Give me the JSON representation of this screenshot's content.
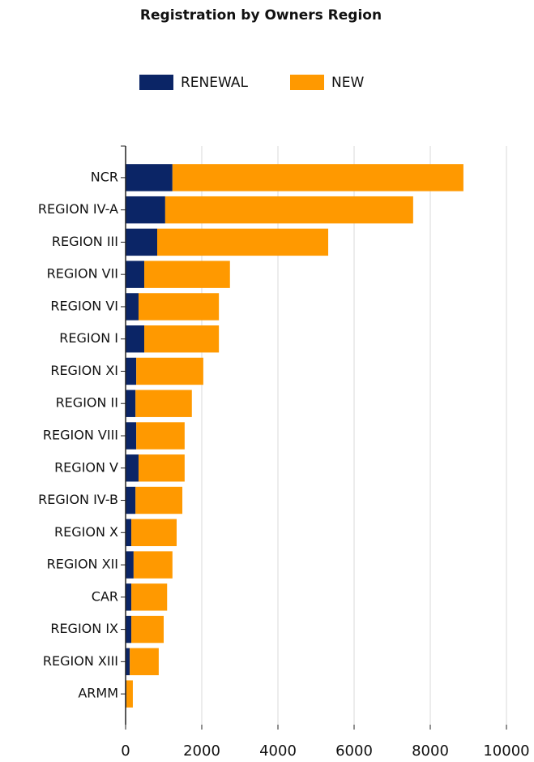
{
  "chart_data": {
    "type": "bar",
    "orientation": "horizontal",
    "stacked": true,
    "title": "Registration by Owners Region",
    "categories": [
      "NCR",
      "REGION IV-A",
      "REGION III",
      "REGION VII",
      "REGION VI",
      "REGION I",
      "REGION XI",
      "REGION II",
      "REGION VIII",
      "REGION V",
      "REGION IV-B",
      "REGION X",
      "REGION XII",
      "CAR",
      "REGION IX",
      "REGION XIII",
      "ARMM"
    ],
    "series": [
      {
        "name": "RENEWAL",
        "color": "#0b2566",
        "values": [
          1230,
          1040,
          830,
          490,
          340,
          490,
          280,
          260,
          280,
          340,
          260,
          150,
          210,
          150,
          150,
          110,
          20
        ]
      },
      {
        "name": "NEW",
        "color": "#ff9900",
        "values": [
          7640,
          6510,
          4490,
          2250,
          2110,
          1960,
          1760,
          1480,
          1270,
          1210,
          1230,
          1190,
          1020,
          940,
          850,
          760,
          170
        ]
      }
    ],
    "xlim": [
      0,
      10000
    ],
    "xticks": [
      0,
      2000,
      4000,
      6000,
      8000,
      10000
    ],
    "grid": true,
    "legend": "top"
  }
}
